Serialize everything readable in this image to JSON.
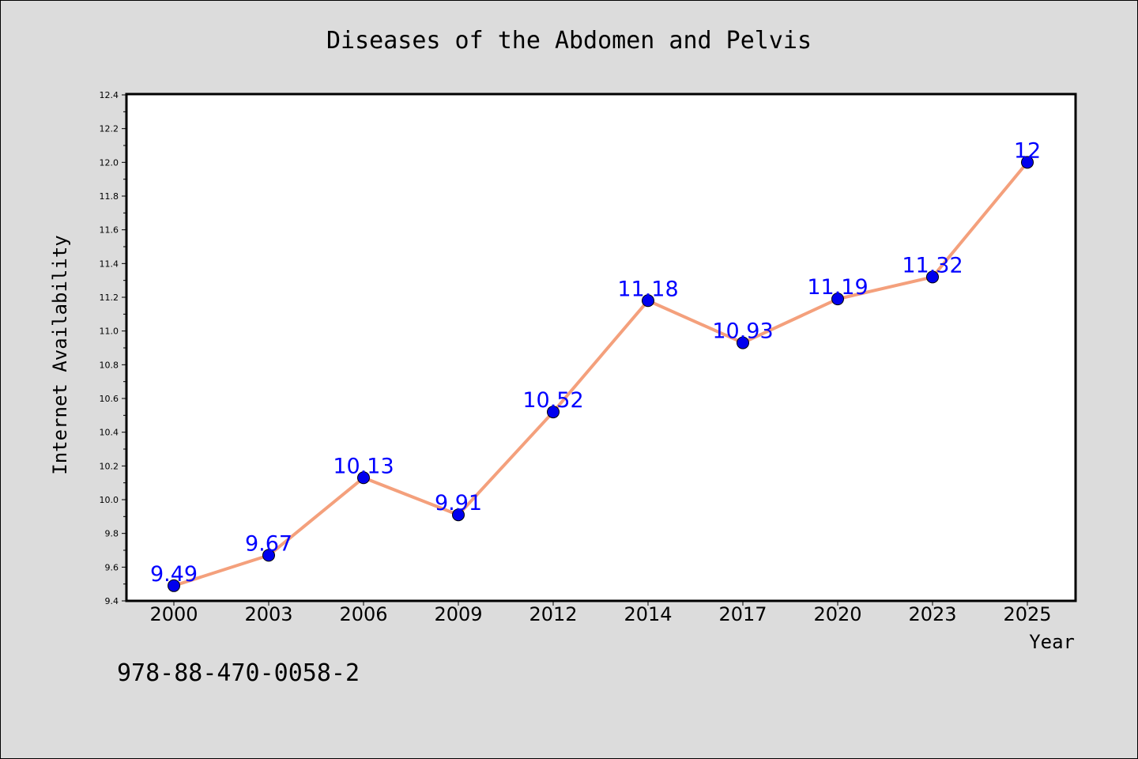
{
  "chart_data": {
    "type": "line",
    "title": "Diseases of the Abdomen and Pelvis",
    "xlabel": "Year",
    "ylabel": "Internet Availability",
    "categories": [
      "2000",
      "2003",
      "2006",
      "2009",
      "2012",
      "2014",
      "2017",
      "2020",
      "2023",
      "2025"
    ],
    "values": [
      9.49,
      9.67,
      10.13,
      9.91,
      10.52,
      11.18,
      10.93,
      11.19,
      11.32,
      12
    ],
    "data_labels": [
      "9.49",
      "9.67",
      "10.13",
      "9.91",
      "10.52",
      "11.18",
      "10.93",
      "11.19",
      "11.32",
      "12"
    ],
    "ylim": [
      9.4,
      12.4
    ],
    "yticks": [
      "9.4",
      "9.6",
      "9.8",
      "10.0",
      "10.2",
      "10.4",
      "10.6",
      "10.8",
      "11.0",
      "11.2",
      "11.4",
      "11.6",
      "11.8",
      "12.0",
      "12.2",
      "12.4"
    ],
    "grid": false,
    "line_color": "#f4a07c",
    "marker_color": "#0000ee",
    "label_color": "#0000ff"
  },
  "footer_code": "978-88-470-0058-2"
}
